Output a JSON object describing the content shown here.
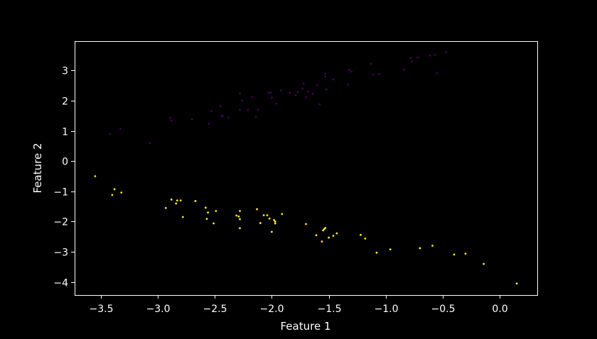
{
  "chart_data": {
    "type": "scatter",
    "title": "",
    "xlabel": "Feature 1",
    "ylabel": "Feature 2",
    "xlim": [
      -3.73,
      0.33
    ],
    "ylim": [
      -4.43,
      3.97
    ],
    "xticks": [
      -3.5,
      -3.0,
      -2.5,
      -2.0,
      -1.5,
      -1.0,
      -0.5,
      0.0
    ],
    "xtick_labels": [
      "−3.5",
      "−3.0",
      "−2.5",
      "−2.0",
      "−1.5",
      "−1.0",
      "−0.5",
      "0.0"
    ],
    "yticks": [
      3,
      2,
      1,
      0,
      -1,
      -2,
      -3,
      -4
    ],
    "ytick_labels": [
      "3",
      "2",
      "1",
      "0",
      "−1",
      "−2",
      "−3",
      "−4"
    ],
    "grid": false,
    "legend": "none",
    "background": "#000000",
    "axis_color": "#ffffff",
    "series": [
      {
        "color": "#440154",
        "points": [
          [
            -3.42,
            0.9
          ],
          [
            -3.33,
            1.07
          ],
          [
            -3.07,
            0.6
          ],
          [
            -2.89,
            1.43
          ],
          [
            -2.88,
            1.33
          ],
          [
            -2.7,
            1.38
          ],
          [
            -2.55,
            1.24
          ],
          [
            -2.53,
            1.66
          ],
          [
            -2.45,
            1.82
          ],
          [
            -2.43,
            1.5
          ],
          [
            -2.44,
            1.49
          ],
          [
            -2.38,
            1.45
          ],
          [
            -2.28,
            2.24
          ],
          [
            -2.28,
            1.7
          ],
          [
            -2.26,
            2.0
          ],
          [
            -2.21,
            1.69
          ],
          [
            -2.17,
            2.12
          ],
          [
            -2.14,
            1.47
          ],
          [
            -2.12,
            1.7
          ],
          [
            -2.03,
            2.25
          ],
          [
            -2.01,
            2.27
          ],
          [
            -2.0,
            2.1
          ],
          [
            -1.96,
            1.9
          ],
          [
            -1.92,
            2.33
          ],
          [
            -1.84,
            2.26
          ],
          [
            -1.79,
            2.18
          ],
          [
            -1.77,
            2.28
          ],
          [
            -1.73,
            2.4
          ],
          [
            -1.72,
            2.57
          ],
          [
            -1.7,
            2.11
          ],
          [
            -1.68,
            2.3
          ],
          [
            -1.64,
            2.23
          ],
          [
            -1.6,
            2.51
          ],
          [
            -1.58,
            1.88
          ],
          [
            -1.53,
            2.89
          ],
          [
            -1.53,
            2.8
          ],
          [
            -1.52,
            2.37
          ],
          [
            -1.46,
            2.7
          ],
          [
            -1.33,
            2.53
          ],
          [
            -1.32,
            3.02
          ],
          [
            -1.3,
            2.96
          ],
          [
            -1.13,
            3.22
          ],
          [
            -1.11,
            2.86
          ],
          [
            -1.06,
            2.88
          ],
          [
            -0.84,
            3.03
          ],
          [
            -0.78,
            3.41
          ],
          [
            -0.77,
            3.3
          ],
          [
            -0.72,
            3.43
          ],
          [
            -0.61,
            3.49
          ],
          [
            -0.57,
            3.52
          ],
          [
            -0.55,
            2.9
          ],
          [
            -0.47,
            3.6
          ]
        ]
      },
      {
        "color": "#fde725",
        "points": [
          [
            -3.55,
            -0.5
          ],
          [
            -3.4,
            -1.12
          ],
          [
            -3.38,
            -0.93
          ],
          [
            -3.32,
            -1.04
          ],
          [
            -2.93,
            -1.55
          ],
          [
            -2.88,
            -1.27
          ],
          [
            -2.84,
            -1.4
          ],
          [
            -2.83,
            -1.3
          ],
          [
            -2.8,
            -1.3
          ],
          [
            -2.78,
            -1.85
          ],
          [
            -2.67,
            -1.32
          ],
          [
            -2.58,
            -1.54
          ],
          [
            -2.57,
            -1.91
          ],
          [
            -2.56,
            -1.7
          ],
          [
            -2.51,
            -2.06
          ],
          [
            -2.49,
            -1.65
          ],
          [
            -2.31,
            -1.8
          ],
          [
            -2.29,
            -1.83
          ],
          [
            -2.28,
            -2.22
          ],
          [
            -2.28,
            -1.65
          ],
          [
            -2.28,
            -1.92
          ],
          [
            -2.13,
            -1.59
          ],
          [
            -2.1,
            -2.05
          ],
          [
            -2.07,
            -1.79
          ],
          [
            -2.04,
            -1.79
          ],
          [
            -2.02,
            -1.9
          ],
          [
            -2.0,
            -2.34
          ],
          [
            -1.98,
            -1.95
          ],
          [
            -1.97,
            -2.0
          ],
          [
            -1.97,
            -2.06
          ],
          [
            -1.91,
            -1.75
          ],
          [
            -1.7,
            -2.08
          ],
          [
            -1.61,
            -2.45
          ],
          [
            -1.56,
            -2.66
          ],
          [
            -1.55,
            -2.29
          ],
          [
            -1.54,
            -2.25
          ],
          [
            -1.53,
            -2.21
          ],
          [
            -1.5,
            -2.53
          ],
          [
            -1.46,
            -2.47
          ],
          [
            -1.43,
            -2.39
          ],
          [
            -1.22,
            -2.44
          ],
          [
            -1.18,
            -2.56
          ],
          [
            -1.08,
            -3.03
          ],
          [
            -0.96,
            -2.92
          ],
          [
            -0.7,
            -2.88
          ],
          [
            -0.59,
            -2.8
          ],
          [
            -0.4,
            -3.09
          ],
          [
            -0.3,
            -3.06
          ],
          [
            -0.14,
            -3.4
          ],
          [
            0.15,
            -4.05
          ]
        ]
      }
    ]
  }
}
